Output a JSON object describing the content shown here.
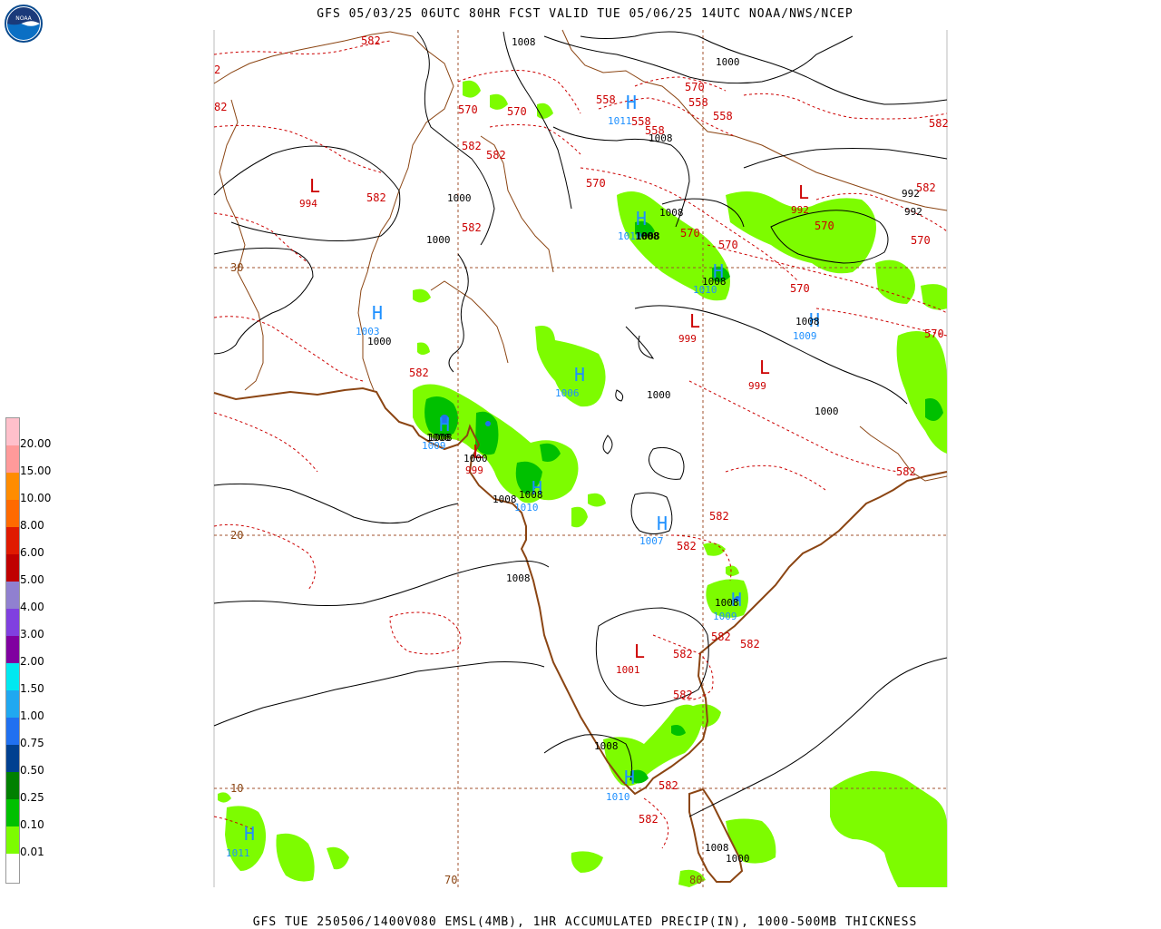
{
  "title": "GFS 05/03/25 06UTC 80HR FCST VALID TUE 05/06/25 14UTC NOAA/NWS/NCEP",
  "footer": "GFS TUE 250506/1400V080 EMSL(4MB), 1HR ACCUMULATED PRECIP(IN), 1000-500MB THICKNESS",
  "logo_text": "NOAA",
  "legend": {
    "levels": [
      "20.00",
      "15.00",
      "10.00",
      "8.00",
      "6.00",
      "5.00",
      "4.00",
      "3.00",
      "2.00",
      "1.50",
      "1.00",
      "0.75",
      "0.50",
      "0.25",
      "0.10",
      "0.01"
    ],
    "colors": [
      "#ffc0cb",
      "#ff9a9a",
      "#ff8c00",
      "#ff6a00",
      "#e01a00",
      "#c00000",
      "#9080d0",
      "#8040e0",
      "#8000a0",
      "#00e8f0",
      "#20a8f0",
      "#2070f0",
      "#004090",
      "#008000",
      "#00c000",
      "#7dfc00",
      "#ffffff"
    ]
  },
  "grid_labels": {
    "lat30": "30",
    "lat20": "20",
    "lat10": "10",
    "lon70": "70",
    "lon80": "80"
  },
  "pressure_centers": [
    {
      "symbol": "L",
      "value": "994"
    },
    {
      "symbol": "H",
      "value": "1011"
    },
    {
      "symbol": "H",
      "value": "1010"
    },
    {
      "symbol": "H",
      "value": "1010"
    },
    {
      "symbol": "H",
      "value": "1003"
    },
    {
      "symbol": "H",
      "value": "1006"
    },
    {
      "symbol": "L",
      "value": "999"
    },
    {
      "symbol": "L",
      "value": "999"
    },
    {
      "symbol": "L",
      "value": "992"
    },
    {
      "symbol": "H",
      "value": "1009"
    },
    {
      "symbol": "H",
      "value": "1009"
    },
    {
      "symbol": "L",
      "value": "999"
    },
    {
      "symbol": "H",
      "value": "1010"
    },
    {
      "symbol": "H",
      "value": "1007"
    },
    {
      "symbol": "H",
      "value": "1009"
    },
    {
      "symbol": "L",
      "value": "1001"
    },
    {
      "symbol": "H",
      "value": "1010"
    },
    {
      "symbol": "H",
      "value": "1011"
    }
  ],
  "isobar_labels": [
    "1008",
    "1000",
    "1008",
    "1000",
    "1000",
    "1000",
    "1008",
    "1008",
    "1000",
    "1000",
    "1000",
    "1008",
    "1008",
    "1008",
    "1008",
    "1008",
    "1008",
    "992",
    "992",
    "1008",
    "1008",
    "1008",
    "1000",
    "1008",
    "1008"
  ],
  "thickness_labels": [
    "582",
    "82",
    "2",
    "570",
    "570",
    "582",
    "582",
    "582",
    "582",
    "582",
    "558",
    "558",
    "558",
    "570",
    "558",
    "558",
    "570",
    "570",
    "570",
    "570",
    "570",
    "570",
    "570",
    "582",
    "582",
    "582",
    "582",
    "582",
    "582",
    "582",
    "582",
    "582",
    "582",
    "582"
  ]
}
